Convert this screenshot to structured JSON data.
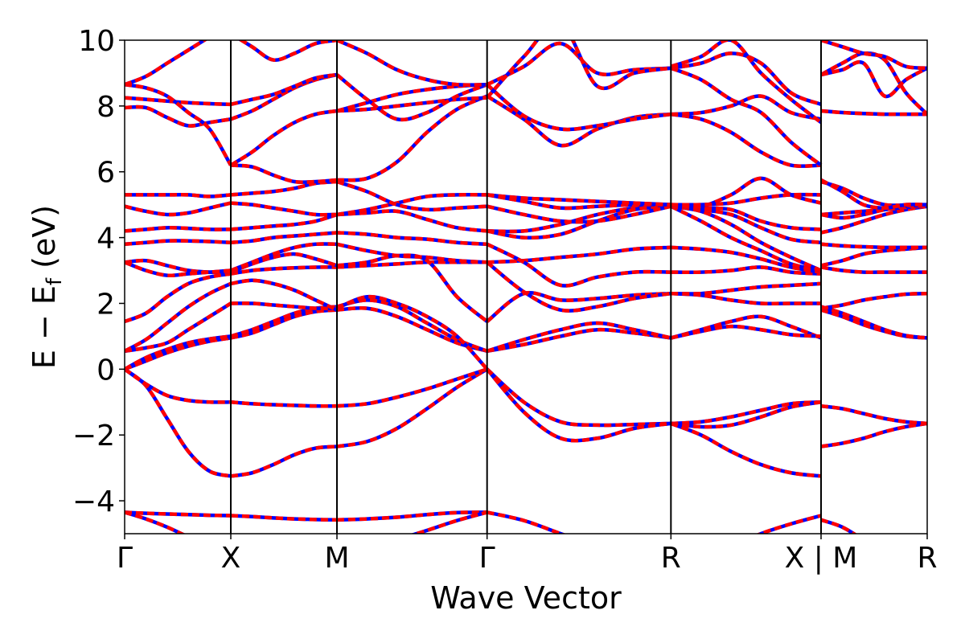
{
  "chart_data": {
    "type": "line",
    "title": "",
    "xlabel": "Wave Vector",
    "ylabel_parts": {
      "main": "E − E",
      "sub": "f",
      "unit": " (eV)"
    },
    "ylim": [
      -5,
      10
    ],
    "y_ticks": [
      -4,
      -2,
      0,
      2,
      4,
      6,
      8,
      10
    ],
    "y_tick_labels": [
      "−4",
      "−2",
      "0",
      "2",
      "4",
      "6",
      "8",
      "10"
    ],
    "kpath": [
      {
        "label": "Γ",
        "x": 0.0
      },
      {
        "label": "X",
        "x": 0.5
      },
      {
        "label": "M",
        "x": 1.0
      },
      {
        "label": "Γ",
        "x": 1.7071
      },
      {
        "label": "R",
        "x": 2.5731
      },
      {
        "label": "X | M",
        "x": 3.2802
      },
      {
        "label": "R",
        "x": 3.7802
      }
    ],
    "line_colors": {
      "overlay": "#ff0000",
      "base": "#0000ff"
    },
    "segments": [
      {
        "x": [
          0,
          0.1,
          0.2,
          0.3,
          0.4,
          0.5
        ],
        "bands": [
          [
            -4.35,
            -4.38,
            -4.4,
            -4.42,
            -4.44,
            -4.45
          ],
          [
            -4.35,
            -4.55,
            -4.8,
            -5.1,
            -5.4,
            -5.7
          ],
          [
            0,
            -0.5,
            -1.5,
            -2.5,
            -3.1,
            -3.25
          ],
          [
            0,
            -0.45,
            -0.8,
            -0.95,
            -1.0,
            -1.0
          ],
          [
            0,
            0.25,
            0.5,
            0.7,
            0.85,
            0.95
          ],
          [
            0,
            0.35,
            0.6,
            0.8,
            0.92,
            1.0
          ],
          [
            0.55,
            0.65,
            0.8,
            1.2,
            1.6,
            2.0
          ],
          [
            0.55,
            0.9,
            1.4,
            1.9,
            2.3,
            2.6
          ],
          [
            1.45,
            1.7,
            2.2,
            2.6,
            2.8,
            2.9
          ],
          [
            3.25,
            3.3,
            3.15,
            3.0,
            2.95,
            2.95
          ],
          [
            3.25,
            3.0,
            2.85,
            2.9,
            2.95,
            3.0
          ],
          [
            3.8,
            3.85,
            3.9,
            3.9,
            3.88,
            3.85
          ],
          [
            4.2,
            4.25,
            4.3,
            4.28,
            4.25,
            4.25
          ],
          [
            4.95,
            4.8,
            4.7,
            4.75,
            4.9,
            5.05
          ],
          [
            5.3,
            5.3,
            5.3,
            5.3,
            5.25,
            5.3
          ],
          [
            7.95,
            7.95,
            7.65,
            7.4,
            7.5,
            7.6
          ],
          [
            8.25,
            8.2,
            8.15,
            8.1,
            8.07,
            8.05
          ],
          [
            8.65,
            8.55,
            8.3,
            7.8,
            7.3,
            6.2
          ],
          [
            8.65,
            8.9,
            9.3,
            9.7,
            10.1,
            10.5
          ]
        ]
      },
      {
        "x": [
          0.5,
          0.6,
          0.7,
          0.8,
          0.9,
          1.0
        ],
        "bands": [
          [
            -4.45,
            -4.48,
            -4.52,
            -4.55,
            -4.57,
            -4.58
          ],
          [
            -3.25,
            -3.15,
            -2.9,
            -2.6,
            -2.4,
            -2.35
          ],
          [
            -1.0,
            -1.05,
            -1.08,
            -1.1,
            -1.12,
            -1.12
          ],
          [
            0.95,
            1.1,
            1.35,
            1.6,
            1.75,
            1.8
          ],
          [
            1.0,
            1.2,
            1.45,
            1.7,
            1.85,
            1.9
          ],
          [
            2.0,
            2.0,
            1.95,
            1.9,
            1.85,
            1.85
          ],
          [
            2.6,
            2.7,
            2.6,
            2.4,
            2.1,
            1.8
          ],
          [
            2.9,
            3.0,
            3.05,
            3.08,
            3.1,
            3.1
          ],
          [
            2.95,
            3.2,
            3.4,
            3.5,
            3.35,
            3.15
          ],
          [
            3.0,
            3.25,
            3.5,
            3.7,
            3.8,
            3.8
          ],
          [
            3.85,
            3.9,
            4.0,
            4.05,
            4.1,
            4.15
          ],
          [
            4.25,
            4.3,
            4.35,
            4.4,
            4.5,
            4.7
          ],
          [
            5.05,
            5.0,
            4.9,
            4.8,
            4.7,
            4.7
          ],
          [
            5.3,
            5.35,
            5.4,
            5.5,
            5.65,
            5.7
          ],
          [
            6.2,
            6.15,
            5.9,
            5.7,
            5.7,
            5.75
          ],
          [
            6.2,
            6.6,
            7.1,
            7.5,
            7.75,
            7.85
          ],
          [
            7.6,
            7.85,
            8.2,
            8.55,
            8.8,
            8.95
          ],
          [
            8.05,
            8.2,
            8.35,
            8.6,
            8.85,
            8.95
          ],
          [
            10.2,
            9.8,
            9.4,
            9.6,
            9.9,
            10.0
          ]
        ]
      },
      {
        "x": [
          1.0,
          1.1414,
          1.2828,
          1.4243,
          1.5657,
          1.7071
        ],
        "bands": [
          [
            -4.58,
            -4.55,
            -4.5,
            -4.42,
            -4.36,
            -4.35
          ],
          [
            -6.2,
            -5.6,
            -5.2,
            -4.9,
            -4.6,
            -4.35
          ],
          [
            -2.35,
            -2.2,
            -1.8,
            -1.2,
            -0.55,
            0.0
          ],
          [
            -1.12,
            -1.05,
            -0.85,
            -0.6,
            -0.3,
            0.0
          ],
          [
            1.8,
            1.85,
            1.6,
            1.2,
            0.8,
            0.55
          ],
          [
            1.9,
            2.1,
            1.9,
            1.4,
            0.9,
            0.55
          ],
          [
            1.85,
            2.2,
            2.0,
            1.6,
            1.0,
            0.0
          ],
          [
            3.1,
            3.15,
            3.2,
            3.25,
            3.25,
            3.25
          ],
          [
            3.15,
            3.25,
            3.45,
            3.3,
            2.2,
            1.45
          ],
          [
            3.8,
            3.6,
            3.45,
            3.4,
            3.3,
            3.25
          ],
          [
            4.15,
            4.1,
            4.0,
            3.95,
            3.85,
            3.8
          ],
          [
            4.7,
            4.75,
            4.8,
            4.55,
            4.3,
            4.2
          ],
          [
            4.7,
            4.85,
            5.05,
            5.25,
            5.3,
            5.3
          ],
          [
            5.7,
            5.4,
            5.0,
            4.85,
            4.9,
            4.95
          ],
          [
            5.75,
            5.8,
            6.3,
            7.2,
            7.9,
            8.3
          ],
          [
            7.85,
            7.9,
            8.0,
            8.1,
            8.2,
            8.25
          ],
          [
            7.85,
            8.1,
            8.35,
            8.5,
            8.6,
            8.65
          ],
          [
            8.95,
            8.2,
            7.6,
            7.8,
            8.3,
            8.65
          ],
          [
            10.0,
            9.6,
            9.1,
            8.8,
            8.65,
            8.65
          ]
        ]
      },
      {
        "x": [
          1.7071,
          1.8803,
          2.0535,
          2.2267,
          2.3999,
          2.5731
        ],
        "bands": [
          [
            -4.35,
            -4.6,
            -5.0,
            -5.4,
            -5.8,
            -6.2
          ],
          [
            0.0,
            -1.0,
            -1.6,
            -1.7,
            -1.68,
            -1.65
          ],
          [
            0.0,
            -1.3,
            -2.1,
            -2.1,
            -1.8,
            -1.65
          ],
          [
            0.55,
            0.75,
            1.0,
            1.2,
            1.1,
            0.95
          ],
          [
            0.55,
            0.9,
            1.2,
            1.4,
            1.2,
            0.95
          ],
          [
            1.45,
            2.3,
            2.1,
            2.15,
            2.25,
            2.3
          ],
          [
            3.25,
            2.35,
            1.8,
            1.9,
            2.15,
            2.3
          ],
          [
            3.25,
            3.3,
            3.4,
            3.5,
            3.65,
            3.7
          ],
          [
            3.8,
            3.25,
            2.55,
            2.8,
            2.95,
            2.95
          ],
          [
            4.2,
            4.2,
            4.4,
            4.7,
            4.9,
            4.95
          ],
          [
            4.2,
            4.0,
            4.1,
            4.5,
            4.85,
            4.95
          ],
          [
            4.95,
            4.7,
            4.5,
            4.5,
            4.7,
            4.95
          ],
          [
            5.3,
            5.1,
            4.9,
            4.95,
            5.0,
            5.0
          ],
          [
            5.3,
            5.2,
            5.15,
            5.1,
            5.05,
            5.0
          ],
          [
            8.3,
            7.6,
            6.8,
            7.3,
            7.65,
            7.75
          ],
          [
            8.65,
            7.7,
            7.3,
            7.4,
            7.6,
            7.75
          ],
          [
            8.65,
            9.2,
            9.9,
            9.0,
            9.1,
            9.15
          ],
          [
            8.25,
            9.5,
            10.5,
            8.6,
            9.0,
            9.15
          ]
        ]
      },
      {
        "x": [
          2.5731,
          2.7145,
          2.8559,
          2.9974,
          3.1388,
          3.2802
        ],
        "bands": [
          [
            -6.2,
            -5.8,
            -5.4,
            -5.0,
            -4.7,
            -4.45
          ],
          [
            -1.65,
            -1.6,
            -1.45,
            -1.25,
            -1.05,
            -1.0
          ],
          [
            -1.65,
            -1.75,
            -1.7,
            -1.45,
            -1.15,
            -1.0
          ],
          [
            -1.65,
            -2.0,
            -2.5,
            -2.9,
            -3.15,
            -3.25
          ],
          [
            0.95,
            1.2,
            1.45,
            1.6,
            1.3,
            0.95
          ],
          [
            0.95,
            1.15,
            1.3,
            1.2,
            1.05,
            1.0
          ],
          [
            2.3,
            2.25,
            2.1,
            2.0,
            2.0,
            2.0
          ],
          [
            2.3,
            2.3,
            2.4,
            2.5,
            2.55,
            2.6
          ],
          [
            2.95,
            2.95,
            3.0,
            3.1,
            2.95,
            2.9
          ],
          [
            3.7,
            3.65,
            3.55,
            3.35,
            3.1,
            2.95
          ],
          [
            4.95,
            4.5,
            4.0,
            3.6,
            3.2,
            3.0
          ],
          [
            4.95,
            4.8,
            4.4,
            3.85,
            3.4,
            3.0
          ],
          [
            4.95,
            4.85,
            4.7,
            4.3,
            3.95,
            3.85
          ],
          [
            5.0,
            4.9,
            4.85,
            4.5,
            4.3,
            4.25
          ],
          [
            5.0,
            4.95,
            5.3,
            5.8,
            5.3,
            5.05
          ],
          [
            5.0,
            5.0,
            5.05,
            5.2,
            5.3,
            5.3
          ],
          [
            7.75,
            7.6,
            7.2,
            6.6,
            6.2,
            6.2
          ],
          [
            7.75,
            7.8,
            8.0,
            8.3,
            7.8,
            7.6
          ],
          [
            9.15,
            8.8,
            8.2,
            7.8,
            6.9,
            6.2
          ],
          [
            9.15,
            9.3,
            9.6,
            9.3,
            8.4,
            8.05
          ],
          [
            9.2,
            9.5,
            10.0,
            9.0,
            8.2,
            7.5
          ]
        ]
      },
      {
        "x": [
          3.2802,
          3.3802,
          3.4802,
          3.5802,
          3.6802,
          3.7802
        ],
        "bands": [
          [
            -4.58,
            -4.8,
            -5.2,
            -5.7,
            -6.1,
            -6.2
          ],
          [
            -2.35,
            -2.25,
            -2.1,
            -1.9,
            -1.75,
            -1.65
          ],
          [
            -1.12,
            -1.2,
            -1.35,
            -1.5,
            -1.6,
            -1.65
          ],
          [
            1.8,
            1.6,
            1.35,
            1.15,
            1.0,
            0.95
          ],
          [
            1.9,
            1.7,
            1.45,
            1.2,
            1.02,
            0.95
          ],
          [
            1.85,
            1.95,
            2.1,
            2.2,
            2.28,
            2.3
          ],
          [
            3.1,
            3.0,
            2.95,
            2.95,
            2.95,
            2.95
          ],
          [
            3.15,
            3.3,
            3.5,
            3.6,
            3.65,
            3.7
          ],
          [
            3.8,
            3.75,
            3.72,
            3.7,
            3.7,
            3.7
          ],
          [
            4.15,
            4.3,
            4.5,
            4.7,
            4.85,
            4.95
          ],
          [
            4.7,
            4.75,
            4.8,
            4.85,
            4.92,
            4.95
          ],
          [
            4.7,
            4.6,
            4.7,
            4.85,
            4.95,
            5.0
          ],
          [
            5.7,
            5.5,
            5.2,
            5.0,
            4.98,
            4.95
          ],
          [
            5.75,
            5.4,
            5.0,
            4.9,
            5.0,
            5.0
          ],
          [
            7.85,
            7.8,
            7.77,
            7.75,
            7.75,
            7.75
          ],
          [
            8.95,
            9.3,
            9.6,
            9.4,
            8.4,
            7.75
          ],
          [
            8.95,
            9.1,
            9.3,
            8.3,
            8.8,
            9.15
          ],
          [
            10.0,
            9.8,
            9.6,
            9.5,
            9.2,
            9.15
          ]
        ]
      }
    ]
  }
}
